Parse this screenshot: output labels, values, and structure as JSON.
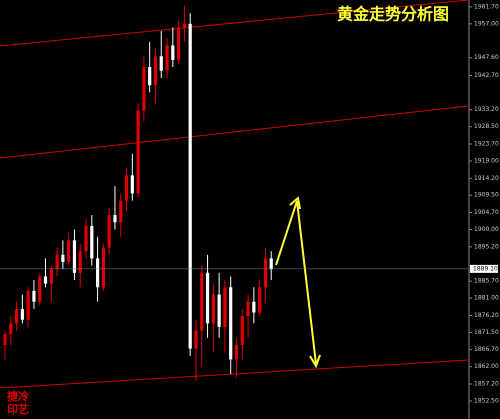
{
  "chart_data": {
    "type": "candlestick",
    "title": "黄金走势分析图",
    "watermark": [
      "捷冷",
      "印艺"
    ],
    "bull_color": "#e00000",
    "bear_color": "#ffffff",
    "ylim": [
      1847.5,
      1963.6
    ],
    "yticks": [
      {
        "value": 1961.7,
        "label": "1961.70"
      },
      {
        "value": 1957,
        "label": "1957.00"
      },
      {
        "value": 1947.6,
        "label": "1947.60"
      },
      {
        "value": 1942.7,
        "label": "1942.70"
      },
      {
        "value": 1933.2,
        "label": "1933.20"
      },
      {
        "value": 1928.5,
        "label": "1928.50"
      },
      {
        "value": 1923.7,
        "label": "1923.70"
      },
      {
        "value": 1919,
        "label": "1919.00"
      },
      {
        "value": 1914.2,
        "label": "1914.20"
      },
      {
        "value": 1909.5,
        "label": "1909.50"
      },
      {
        "value": 1904.7,
        "label": "1904.70"
      },
      {
        "value": 1900,
        "label": "1900.00"
      },
      {
        "value": 1895.2,
        "label": "1895.20"
      },
      {
        "value": 1885.7,
        "label": "1885.70"
      },
      {
        "value": 1881,
        "label": "1881.00"
      },
      {
        "value": 1876.2,
        "label": "1876.20"
      },
      {
        "value": 1871.5,
        "label": "1871.50"
      },
      {
        "value": 1866.7,
        "label": "1866.70"
      },
      {
        "value": 1862,
        "label": "1862.00"
      },
      {
        "value": 1857.2,
        "label": "1857.20"
      },
      {
        "value": 1852.5,
        "label": "1852.50"
      }
    ],
    "current_price": {
      "value": 1889.1,
      "label": "1889.10"
    },
    "open": [
      1868,
      1871,
      1874,
      1878,
      1875,
      1883,
      1880,
      1887,
      1885,
      1889,
      1893,
      1891,
      1897,
      1888,
      1894,
      1901,
      1892,
      1884,
      1895,
      1904,
      1902,
      1908,
      1915,
      1910,
      1933,
      1945,
      1940,
      1948,
      1944,
      1951,
      1947,
      1956,
      1957,
      1867,
      1872,
      1888,
      1874,
      1882,
      1873,
      1884,
      1864,
      1868,
      1876,
      1880,
      1877,
      1884,
      1892
    ],
    "high": [
      1872,
      1876,
      1880,
      1882,
      1884,
      1886,
      1888,
      1892,
      1890,
      1895,
      1897,
      1899,
      1900,
      1896,
      1903,
      1904,
      1898,
      1896,
      1906,
      1912,
      1910,
      1917,
      1921,
      1935,
      1948,
      1952,
      1950,
      1955,
      1953,
      1956,
      1958,
      1962,
      1960,
      1875,
      1890,
      1893,
      1885,
      1888,
      1886,
      1887,
      1870,
      1878,
      1882,
      1884,
      1886,
      1895,
      1894
    ],
    "low": [
      1864,
      1868,
      1872,
      1874,
      1873,
      1878,
      1879,
      1884,
      1880,
      1887,
      1889,
      1890,
      1886,
      1884,
      1892,
      1890,
      1880,
      1883,
      1893,
      1900,
      1898,
      1905,
      1908,
      1909,
      1930,
      1938,
      1935,
      1942,
      1942,
      1945,
      1946,
      1952,
      1865,
      1858,
      1862,
      1870,
      1866,
      1870,
      1866,
      1860,
      1859,
      1864,
      1870,
      1874,
      1876,
      1880,
      1886
    ],
    "close": [
      1871,
      1874,
      1878,
      1875,
      1883,
      1880,
      1887,
      1885,
      1889,
      1893,
      1891,
      1897,
      1888,
      1894,
      1901,
      1892,
      1884,
      1895,
      1904,
      1902,
      1908,
      1915,
      1910,
      1933,
      1945,
      1940,
      1948,
      1944,
      1951,
      1947,
      1956,
      1957,
      1867,
      1872,
      1888,
      1874,
      1882,
      1873,
      1884,
      1864,
      1868,
      1876,
      1880,
      1877,
      1884,
      1892,
      1889
    ]
  }
}
